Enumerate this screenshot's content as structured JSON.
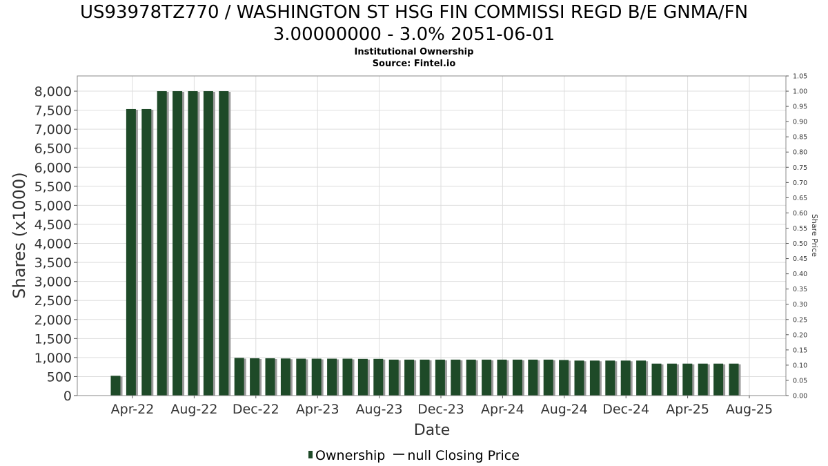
{
  "header": {
    "title_line1": "US93978TZ770 / WASHINGTON ST HSG FIN COMMISSI REGD B/E GNMA/FN",
    "title_line2": "3.00000000 - 3.0% 2051-06-01",
    "subtitle": "Institutional Ownership",
    "source": "Source: Fintel.io"
  },
  "legend": {
    "ownership_label": "Ownership",
    "price_label": "null Closing Price"
  },
  "colors": {
    "bar": "#1e4a28",
    "bar_shadow": "#9a9a9a",
    "grid": "#dddddd",
    "axis": "#555555"
  },
  "chart_data": {
    "type": "bar",
    "title": "US93978TZ770 / WASHINGTON ST HSG FIN COMMISSI REGD B/E GNMA/FN 3.00000000 - 3.0% 2051-06-01",
    "subtitle": "Institutional Ownership",
    "xlabel": "Date",
    "ylabel": "Shares (x1000)",
    "y2label": "Share Price",
    "ylim": [
      0,
      8400
    ],
    "y2lim": [
      0,
      1.05
    ],
    "grid": true,
    "legend_position": "bottom",
    "x_tick_labels": [
      "Apr-22",
      "Aug-22",
      "Dec-22",
      "Apr-23",
      "Aug-23",
      "Dec-23",
      "Apr-24",
      "Aug-24",
      "Dec-24",
      "Apr-25",
      "Aug-25"
    ],
    "y_tick_labels": [
      "0",
      "500",
      "1,000",
      "1,500",
      "2,000",
      "2,500",
      "3,000",
      "3,500",
      "4,000",
      "4,500",
      "5,000",
      "5,500",
      "6,000",
      "6,500",
      "7,000",
      "7,500",
      "8,000"
    ],
    "y2_tick_labels": [
      "0.00",
      "0.05",
      "0.10",
      "0.15",
      "0.20",
      "0.25",
      "0.30",
      "0.35",
      "0.40",
      "0.45",
      "0.50",
      "0.55",
      "0.60",
      "0.65",
      "0.70",
      "0.75",
      "0.80",
      "0.85",
      "0.90",
      "0.95",
      "1.00",
      "1.05"
    ],
    "series": [
      {
        "name": "Ownership",
        "values": [
          520,
          7530,
          7530,
          8000,
          8000,
          8000,
          8000,
          8000,
          990,
          980,
          980,
          975,
          970,
          970,
          970,
          970,
          965,
          965,
          945,
          945,
          945,
          945,
          945,
          945,
          945,
          945,
          945,
          945,
          945,
          935,
          920,
          920,
          920,
          920,
          920,
          840,
          840,
          840,
          840,
          840,
          840
        ]
      }
    ]
  }
}
